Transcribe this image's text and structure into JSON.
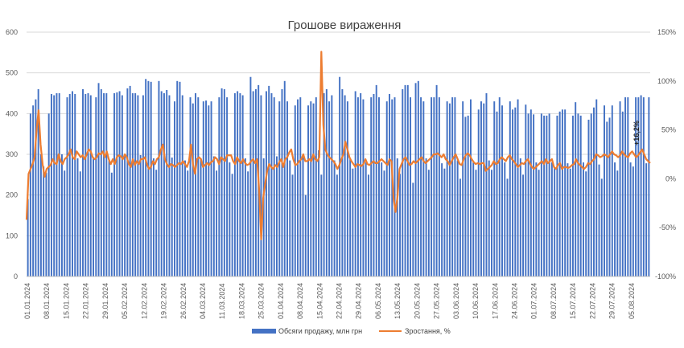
{
  "chart_data": {
    "type": "bar+line",
    "title": "Грошове вираження",
    "y_left": {
      "min": 0,
      "max": 600,
      "ticks": [
        "0",
        "100",
        "200",
        "300",
        "400",
        "500",
        "600"
      ]
    },
    "y_right": {
      "min": -100,
      "max": 150,
      "ticks": [
        "-100%",
        "-50%",
        "0%",
        "50%",
        "100%",
        "150%"
      ],
      "values": [
        -100,
        -50,
        0,
        50,
        100,
        150
      ]
    },
    "x_tick_labels": [
      "01.01.2024",
      "08.01.2024",
      "15.01.2024",
      "22.01.2024",
      "29.01.2024",
      "05.02.2024",
      "12.02.2024",
      "19.02.2024",
      "26.02.2024",
      "04.03.2024",
      "11.03.2024",
      "18.03.2024",
      "25.03.2024",
      "01.04.2024",
      "08.04.2024",
      "15.04.2024",
      "22.04.2024",
      "29.04.2024",
      "06.05.2024",
      "13.05.2024",
      "20.05.2024",
      "27.05.2024",
      "03.06.2024",
      "10.06.2024",
      "17.06.2024",
      "24.06.2024",
      "01.07.2024",
      "08.07.2024",
      "15.07.2024",
      "22.07.2024",
      "29.07.2024",
      "05.08.2024"
    ],
    "annotation": "+16,2%",
    "series": [
      {
        "name": "Обсяги продажу, млн грн",
        "axis": "left",
        "color": "#4472C4",
        "values": [
          190,
          400,
          420,
          435,
          460,
          300,
          270,
          255,
          400,
          448,
          445,
          450,
          450,
          300,
          260,
          440,
          448,
          455,
          448,
          290,
          258,
          460,
          448,
          450,
          445,
          290,
          440,
          475,
          460,
          450,
          450,
          285,
          255,
          450,
          452,
          455,
          445,
          295,
          462,
          468,
          450,
          450,
          445,
          298,
          445,
          485,
          480,
          478,
          290,
          262,
          480,
          455,
          450,
          458,
          445,
          292,
          430,
          480,
          478,
          445,
          285,
          260,
          440,
          425,
          450,
          440,
          290,
          430,
          432,
          420,
          430,
          295,
          260,
          440,
          462,
          460,
          440,
          280,
          252,
          450,
          455,
          450,
          445,
          290,
          258,
          490,
          455,
          460,
          470,
          445,
          290,
          455,
          468,
          450,
          440,
          295,
          430,
          460,
          480,
          430,
          285,
          250,
          420,
          435,
          440,
          300,
          200,
          420,
          430,
          425,
          440,
          310,
          250,
          450,
          460,
          430,
          445,
          285,
          250,
          490,
          460,
          445,
          430,
          290,
          265,
          455,
          440,
          450,
          435,
          280,
          250,
          440,
          448,
          470,
          440,
          280,
          260,
          430,
          448,
          435,
          440,
          290,
          252,
          460,
          470,
          470,
          440,
          230,
          475,
          480,
          440,
          430,
          290,
          262,
          440,
          440,
          470,
          440,
          278,
          265,
          430,
          425,
          440,
          440,
          285,
          240,
          430,
          392,
          395,
          435,
          280,
          262,
          410,
          430,
          425,
          450,
          285,
          262,
          430,
          405,
          440,
          420,
          280,
          240,
          430,
          410,
          415,
          435,
          290,
          250,
          422,
          400,
          410,
          398,
          280,
          262,
          400,
          395,
          395,
          400,
          280,
          268,
          395,
          405,
          410,
          410,
          278,
          265,
          395,
          428,
          400,
          395,
          280,
          258,
          385,
          400,
          415,
          435,
          275,
          240,
          420,
          380,
          390,
          420,
          280,
          260,
          430,
          405,
          440,
          440,
          280,
          270,
          440,
          440,
          445,
          440,
          278,
          440
        ]
      },
      {
        "name": "Зростання, %",
        "axis": "right",
        "color": "#ED7D31",
        "values": [
          -42,
          5,
          10,
          15,
          22,
          50,
          70,
          35,
          15,
          2,
          10,
          12,
          14,
          20,
          16,
          15,
          25,
          18,
          15,
          20,
          22,
          25,
          30,
          22,
          20,
          28,
          25,
          22,
          24,
          20,
          25,
          30,
          28,
          22,
          20,
          22,
          26,
          25,
          28,
          22,
          28,
          20,
          15,
          20,
          15,
          22,
          24,
          23,
          20,
          25,
          22,
          15,
          12,
          20,
          14,
          18,
          15,
          20,
          20,
          22,
          15,
          10,
          12,
          18,
          15,
          20,
          22,
          30,
          35,
          20,
          15,
          12,
          15,
          14,
          12,
          14,
          16,
          15,
          18,
          15,
          12,
          18,
          35,
          15,
          5,
          20,
          22,
          20,
          12,
          14,
          16,
          14,
          17,
          18,
          22,
          20,
          15,
          22,
          20,
          18,
          24,
          24,
          24,
          18,
          15,
          22,
          18,
          16,
          20,
          16,
          14,
          15,
          18,
          20,
          16,
          20,
          -12,
          -62,
          -20,
          -5,
          8,
          15,
          12,
          10,
          14,
          12,
          17,
          20,
          12,
          20,
          22,
          27,
          30,
          20,
          14,
          15,
          18,
          20,
          25,
          18,
          18,
          20,
          18,
          25,
          20,
          18,
          22,
          130,
          55,
          30,
          25,
          22,
          20,
          18,
          15,
          10,
          14,
          20,
          25,
          38,
          30,
          22,
          18,
          15,
          12,
          15,
          14,
          13,
          15,
          20,
          15,
          14,
          16,
          18,
          16,
          16,
          18,
          20,
          18,
          16,
          14,
          20,
          18,
          -20,
          -34,
          -18,
          10,
          15,
          20,
          22,
          18,
          14,
          15,
          18,
          16,
          18,
          20,
          22,
          18,
          16,
          18,
          20,
          22,
          25,
          25,
          26,
          24,
          22,
          25,
          20,
          18,
          14,
          18,
          22,
          25,
          20,
          15,
          14,
          20,
          24,
          26,
          24,
          20,
          17,
          15,
          16,
          15,
          16,
          16,
          8,
          10,
          12,
          14,
          18,
          15,
          16,
          20,
          22,
          20,
          18,
          22,
          24,
          20,
          18,
          15,
          12,
          14,
          16,
          15,
          18,
          20,
          16,
          12,
          10,
          12,
          14,
          16,
          18,
          15,
          20,
          16,
          18,
          20,
          12,
          10,
          14,
          16,
          10,
          12,
          12,
          11,
          12,
          14,
          15,
          20,
          16,
          14,
          12,
          10,
          12,
          16,
          15,
          18,
          20,
          25,
          24,
          22,
          23,
          25,
          24,
          22,
          25,
          28,
          25,
          24,
          22,
          24,
          28,
          25,
          23,
          22,
          26,
          28,
          25,
          22,
          24,
          27,
          30,
          25,
          20,
          18,
          16
        ]
      }
    ],
    "legend": "bottom"
  }
}
